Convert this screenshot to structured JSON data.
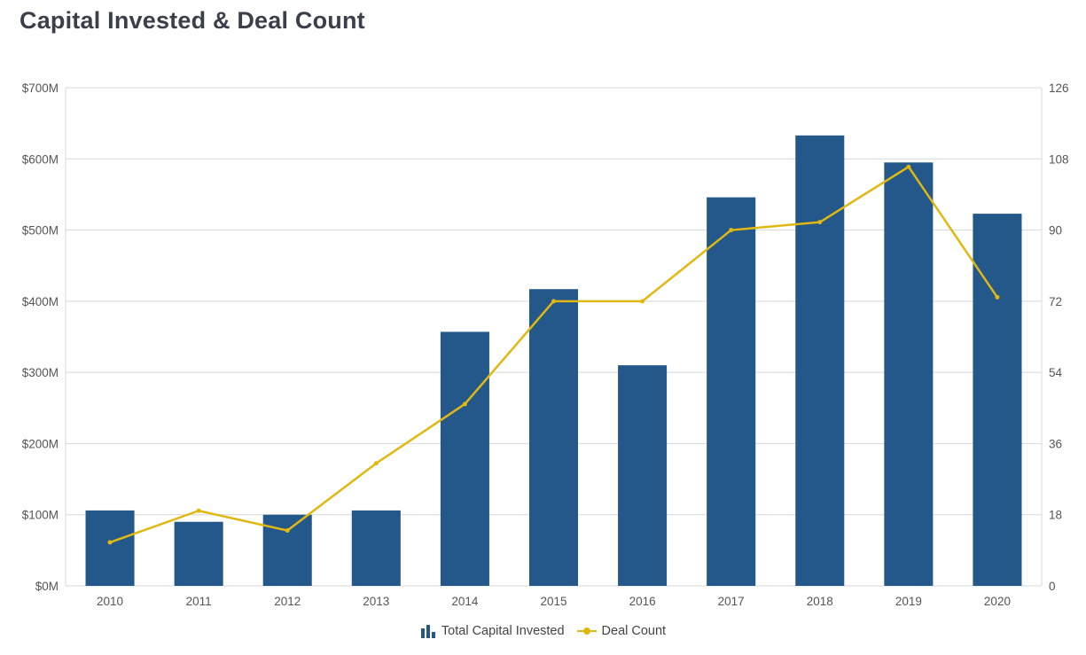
{
  "title": "Capital Invested & Deal Count",
  "chart_data": {
    "type": "bar",
    "categories": [
      "2010",
      "2011",
      "2012",
      "2013",
      "2014",
      "2015",
      "2016",
      "2017",
      "2018",
      "2019",
      "2020"
    ],
    "series": [
      {
        "name": "Total Capital Invested",
        "type": "bar",
        "axis": "left",
        "values": [
          106,
          90,
          100,
          106,
          357,
          417,
          310,
          546,
          633,
          595,
          523
        ]
      },
      {
        "name": "Deal Count",
        "type": "line",
        "axis": "right",
        "values": [
          11,
          19,
          14,
          31,
          46,
          72,
          72,
          90,
          92,
          106,
          73
        ]
      }
    ],
    "y_left": {
      "ylim": [
        0,
        700
      ],
      "ticks": [
        "$0M",
        "$100M",
        "$200M",
        "$300M",
        "$400M",
        "$500M",
        "$600M",
        "$700M"
      ]
    },
    "y_right": {
      "ylim": [
        0,
        126
      ],
      "ticks": [
        "0",
        "18",
        "36",
        "54",
        "72",
        "90",
        "108",
        "126"
      ]
    },
    "grid": true,
    "legend_position": "bottom-center",
    "colors": {
      "bars": "#24578a",
      "line": "#e0b812",
      "grid": "#d8d8d8"
    }
  }
}
